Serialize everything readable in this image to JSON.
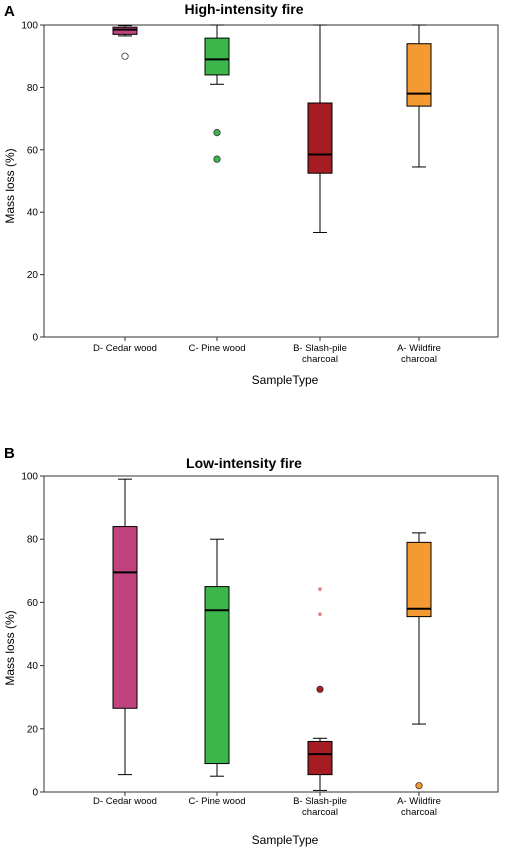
{
  "chart_data": [
    {
      "type": "box",
      "panel": "A",
      "title": "High-intensity fire",
      "xlabel": "SampleType",
      "ylabel": "Mass loss (%)",
      "ylim": [
        0,
        100
      ],
      "yticks": [
        0,
        20,
        40,
        60,
        80,
        100
      ],
      "categories": [
        "D- Cedar wood",
        "C- Pine wood",
        "B- Slash-pile charcoal",
        "A- Wildfire charcoal"
      ],
      "colors": [
        "#c0437e",
        "#3cb64a",
        "#a51c22",
        "#f49a32"
      ],
      "boxes": [
        {
          "min": 96.5,
          "q1": 97,
          "median": 98.5,
          "q3": 99.3,
          "max": 99.8,
          "outliers": [
            {
              "value": 90,
              "kind": "circle",
              "filled": false
            }
          ]
        },
        {
          "min": 81,
          "q1": 84,
          "median": 89,
          "q3": 95.8,
          "max": 100,
          "outliers": [
            {
              "value": 65.5,
              "kind": "circle",
              "filled": true
            },
            {
              "value": 57,
              "kind": "circle",
              "filled": true
            }
          ]
        },
        {
          "min": 33.5,
          "q1": 52.5,
          "median": 58.5,
          "q3": 75,
          "max": 100,
          "outliers": []
        },
        {
          "min": 54.5,
          "q1": 74,
          "median": 78,
          "q3": 94,
          "max": 100,
          "outliers": []
        }
      ]
    },
    {
      "type": "box",
      "panel": "B",
      "title": "Low-intensity fire",
      "xlabel": "SampleType",
      "ylabel": "Mass loss (%)",
      "ylim": [
        0,
        100
      ],
      "yticks": [
        0,
        20,
        40,
        60,
        80,
        100
      ],
      "categories": [
        "D- Cedar wood",
        "C- Pine wood",
        "B- Slash-pile charcoal",
        "A- Wildfire charcoal"
      ],
      "colors": [
        "#c0437e",
        "#3cb64a",
        "#a51c22",
        "#f49a32"
      ],
      "boxes": [
        {
          "min": 5.5,
          "q1": 26.5,
          "median": 69.5,
          "q3": 84,
          "max": 99,
          "outliers": []
        },
        {
          "min": 5,
          "q1": 9,
          "median": 57.5,
          "q3": 65,
          "max": 80,
          "outliers": []
        },
        {
          "min": 0.5,
          "q1": 5.5,
          "median": 12,
          "q3": 16,
          "max": 17,
          "outliers": [
            {
              "value": 63.5,
              "kind": "star"
            },
            {
              "value": 55.5,
              "kind": "star"
            },
            {
              "value": 32.5,
              "kind": "circle",
              "filled": true
            }
          ]
        },
        {
          "min": 21.5,
          "q1": 55.5,
          "median": 58,
          "q3": 79,
          "max": 82,
          "outliers": [
            {
              "value": 2,
              "kind": "circle",
              "filled": true
            }
          ]
        }
      ]
    }
  ]
}
